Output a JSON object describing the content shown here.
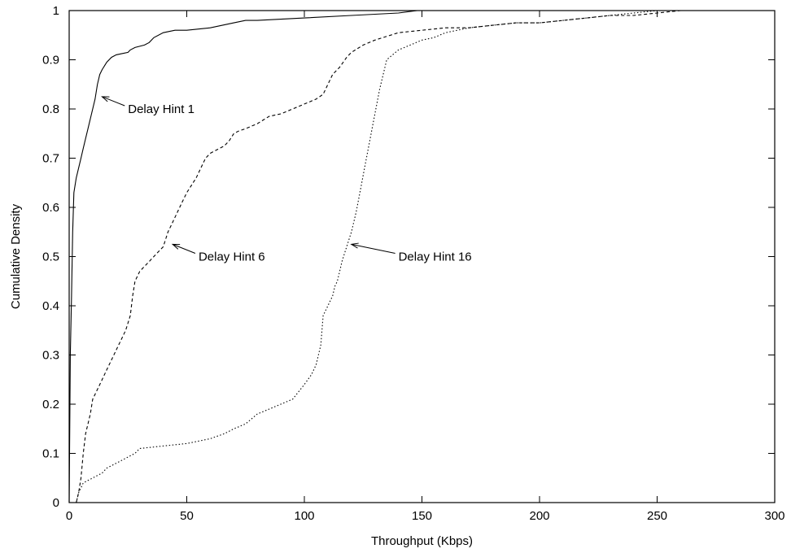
{
  "chart_data": {
    "type": "line",
    "title": "",
    "xlabel": "Throughput (Kbps)",
    "ylabel": "Cumulative Density",
    "xlim": [
      0,
      300
    ],
    "ylim": [
      0,
      1
    ],
    "xticks": [
      0,
      50,
      100,
      150,
      200,
      250,
      300
    ],
    "yticks": [
      0,
      0.1,
      0.2,
      0.3,
      0.4,
      0.5,
      0.6,
      0.7,
      0.8,
      0.9,
      1
    ],
    "grid": false,
    "legend": "none",
    "series": [
      {
        "name": "Delay Hint 1",
        "line_style": "solid",
        "color": "#000000",
        "x": [
          0,
          0.5,
          1,
          1.5,
          2,
          3,
          4,
          5,
          6,
          7,
          8,
          9,
          10,
          11,
          12,
          13,
          14,
          16,
          18,
          20,
          22,
          25,
          26,
          28,
          32,
          34,
          36,
          40,
          45,
          50,
          60,
          70,
          75,
          80,
          100,
          120,
          140,
          148,
          150
        ],
        "y": [
          0,
          0.3,
          0.42,
          0.55,
          0.63,
          0.66,
          0.68,
          0.7,
          0.72,
          0.74,
          0.76,
          0.78,
          0.8,
          0.82,
          0.85,
          0.87,
          0.88,
          0.895,
          0.905,
          0.91,
          0.912,
          0.915,
          0.92,
          0.925,
          0.93,
          0.935,
          0.945,
          0.955,
          0.96,
          0.96,
          0.965,
          0.975,
          0.98,
          0.98,
          0.985,
          0.99,
          0.995,
          1.0,
          1.0
        ]
      },
      {
        "name": "Delay Hint 6",
        "line_style": "dashed",
        "color": "#000000",
        "x": [
          3,
          4,
          5,
          6,
          7,
          8,
          9,
          10,
          12,
          14,
          16,
          18,
          20,
          22,
          24,
          26,
          27,
          28,
          30,
          32,
          34,
          36,
          38,
          40,
          42,
          44,
          46,
          48,
          50,
          52,
          54,
          56,
          58,
          60,
          62,
          64,
          66,
          68,
          70,
          72,
          75,
          80,
          85,
          90,
          95,
          100,
          105,
          108,
          110,
          112,
          115,
          118,
          120,
          125,
          130,
          140,
          150,
          160,
          170,
          180,
          190,
          200,
          210,
          220,
          230,
          240,
          250,
          260,
          270,
          275
        ],
        "y": [
          0,
          0.02,
          0.05,
          0.1,
          0.14,
          0.16,
          0.18,
          0.21,
          0.23,
          0.25,
          0.27,
          0.29,
          0.31,
          0.33,
          0.35,
          0.38,
          0.42,
          0.45,
          0.47,
          0.48,
          0.49,
          0.5,
          0.51,
          0.52,
          0.55,
          0.57,
          0.59,
          0.61,
          0.63,
          0.645,
          0.66,
          0.68,
          0.7,
          0.71,
          0.715,
          0.72,
          0.725,
          0.735,
          0.75,
          0.755,
          0.76,
          0.77,
          0.785,
          0.79,
          0.8,
          0.81,
          0.82,
          0.83,
          0.85,
          0.87,
          0.885,
          0.905,
          0.915,
          0.93,
          0.94,
          0.955,
          0.96,
          0.965,
          0.965,
          0.97,
          0.975,
          0.975,
          0.98,
          0.985,
          0.99,
          0.99,
          0.995,
          1.0,
          1.0,
          1.0
        ]
      },
      {
        "name": "Delay Hint 16",
        "line_style": "dotted",
        "color": "#000000",
        "x": [
          3,
          4,
          5,
          6,
          8,
          10,
          12,
          14,
          16,
          18,
          20,
          22,
          24,
          26,
          28,
          30,
          40,
          50,
          60,
          63,
          66,
          70,
          75,
          80,
          85,
          90,
          95,
          100,
          103,
          105,
          107,
          108,
          110,
          112,
          113,
          114,
          115,
          116,
          118,
          120,
          122,
          124,
          126,
          128,
          130,
          132,
          135,
          140,
          145,
          150,
          155,
          160,
          165,
          170,
          180,
          190,
          200,
          210,
          220,
          230,
          240,
          250,
          260,
          270
        ],
        "y": [
          0,
          0.02,
          0.03,
          0.04,
          0.045,
          0.05,
          0.055,
          0.06,
          0.07,
          0.075,
          0.08,
          0.085,
          0.09,
          0.095,
          0.1,
          0.11,
          0.115,
          0.12,
          0.13,
          0.135,
          0.14,
          0.15,
          0.16,
          0.18,
          0.19,
          0.2,
          0.21,
          0.24,
          0.26,
          0.28,
          0.32,
          0.38,
          0.4,
          0.42,
          0.44,
          0.45,
          0.47,
          0.49,
          0.52,
          0.55,
          0.59,
          0.64,
          0.69,
          0.74,
          0.79,
          0.84,
          0.9,
          0.92,
          0.93,
          0.94,
          0.945,
          0.955,
          0.96,
          0.965,
          0.97,
          0.975,
          0.975,
          0.98,
          0.985,
          0.99,
          0.995,
          1.0,
          1.0,
          1.0
        ]
      }
    ],
    "annotations": [
      {
        "text": "Delay Hint 1",
        "series": "Delay Hint 1",
        "arrow_to": [
          14,
          0.825
        ],
        "label_at": [
          25,
          0.8
        ]
      },
      {
        "text": "Delay Hint 6",
        "series": "Delay Hint 6",
        "arrow_to": [
          44,
          0.525
        ],
        "label_at": [
          55,
          0.5
        ]
      },
      {
        "text": "Delay Hint 16",
        "series": "Delay Hint 16",
        "arrow_to": [
          120,
          0.525
        ],
        "label_at": [
          140,
          0.5
        ]
      }
    ]
  }
}
